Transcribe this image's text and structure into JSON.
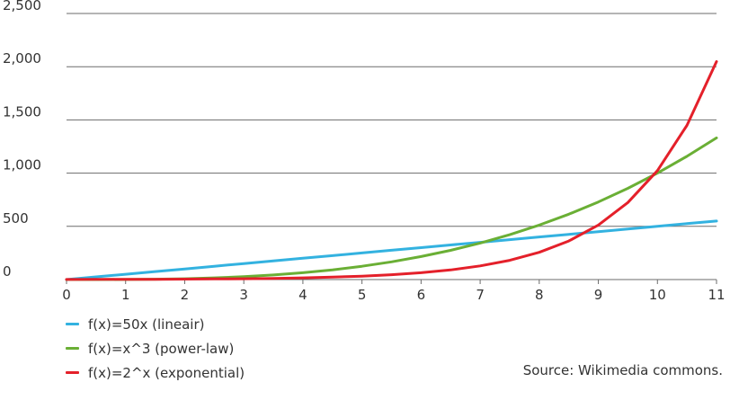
{
  "chart_data": {
    "type": "line",
    "title": "",
    "xlabel": "",
    "ylabel": "",
    "xlim": [
      0,
      11
    ],
    "ylim": [
      0,
      2500
    ],
    "x_ticks": [
      "0",
      "1",
      "2",
      "3",
      "4",
      "5",
      "6",
      "7",
      "8",
      "9",
      "10",
      "11"
    ],
    "y_ticks": [
      "0",
      "500",
      "1,000",
      "1,500",
      "2,000",
      "2,500"
    ],
    "grid": "horizontal",
    "legend": "bottom-left",
    "x": [
      0,
      0.5,
      1,
      1.5,
      2,
      2.5,
      3,
      3.5,
      4,
      4.5,
      5,
      5.5,
      6,
      6.5,
      7,
      7.5,
      8,
      8.5,
      9,
      9.5,
      10,
      10.5,
      11
    ],
    "series": [
      {
        "name": "f(x)=50x (lineair)",
        "color": "#33b2e0",
        "values": [
          0,
          25,
          50,
          75,
          100,
          125,
          150,
          175,
          200,
          225,
          250,
          275,
          300,
          325,
          350,
          375,
          400,
          425,
          450,
          475,
          500,
          525,
          550
        ]
      },
      {
        "name": "f(x)=x^3 (power-law)",
        "color": "#6aaf35",
        "values": [
          0,
          0.125,
          1,
          3.375,
          8,
          15.625,
          27,
          42.875,
          64,
          91.125,
          125,
          166.375,
          216,
          274.625,
          343,
          421.875,
          512,
          614.125,
          729,
          857.375,
          1000,
          1157.625,
          1331
        ]
      },
      {
        "name": "f(x)=2^x (exponential)",
        "color": "#e4202a",
        "values": [
          1,
          1.41,
          2,
          2.83,
          4,
          5.66,
          8,
          11.31,
          16,
          22.63,
          32,
          45.25,
          64,
          90.51,
          128,
          181.02,
          256,
          362.04,
          512,
          724.08,
          1024,
          1448.15,
          2048
        ]
      }
    ]
  },
  "source_text": "Source: Wikimedia commons."
}
